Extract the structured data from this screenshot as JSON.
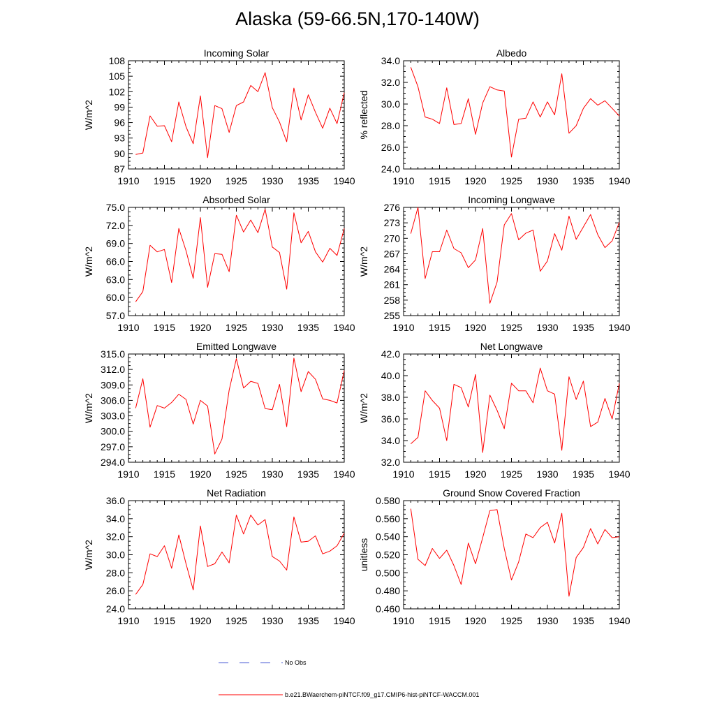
{
  "title": "Alaska (59-66.5N,170-140W)",
  "colors": {
    "model": "#ff0000",
    "obs": "#4a5bd6",
    "axis": "#000000"
  },
  "legend": {
    "obs_label": "No Obs",
    "model_label": "b.e21.BWaerchem-piNTCF.f09_g17.CMIP6-hist-piNTCF-WACCM.001"
  },
  "chart_data": [
    {
      "type": "line",
      "title": "Incoming Solar",
      "ylabel": "W/m^2",
      "xlim": [
        1910,
        1940
      ],
      "ylim": [
        87,
        108
      ],
      "yticks": [
        87,
        90,
        93,
        96,
        99,
        102,
        105,
        108
      ],
      "ytick_labels": [
        "87",
        "90",
        "93",
        "96",
        "99",
        "102",
        "105",
        "108"
      ],
      "xticks": [
        1910,
        1915,
        1920,
        1925,
        1930,
        1935,
        1940
      ],
      "xtick_labels": [
        "1910",
        "1915",
        "1920",
        "1925",
        "1930",
        "1935",
        "1940"
      ],
      "x": [
        1911,
        1912,
        1913,
        1914,
        1915,
        1916,
        1917,
        1918,
        1919,
        1920,
        1921,
        1922,
        1923,
        1924,
        1925,
        1926,
        1927,
        1928,
        1929,
        1930,
        1931,
        1932,
        1933,
        1934,
        1935,
        1936,
        1937,
        1938,
        1939,
        1940
      ],
      "series": [
        {
          "values": [
            89.8,
            90.1,
            97.3,
            95.3,
            95.4,
            92.3,
            100.0,
            95.2,
            91.9,
            101.2,
            89.2,
            99.3,
            98.7,
            94.1,
            99.3,
            100.0,
            103.2,
            102.0,
            105.7,
            98.9,
            96.1,
            92.3,
            102.7,
            96.5,
            101.4,
            98.0,
            94.9,
            98.8,
            95.8,
            101.8
          ]
        }
      ]
    },
    {
      "type": "line",
      "title": "Albedo",
      "ylabel": "% reflected",
      "xlim": [
        1910,
        1940
      ],
      "ylim": [
        24,
        34
      ],
      "yticks": [
        24,
        26,
        28,
        30,
        32,
        34
      ],
      "ytick_labels": [
        "24.0",
        "26.0",
        "28.0",
        "30.0",
        "32.0",
        "34.0"
      ],
      "xticks": [
        1910,
        1915,
        1920,
        1925,
        1930,
        1935,
        1940
      ],
      "xtick_labels": [
        "1910",
        "1915",
        "1920",
        "1925",
        "1930",
        "1935",
        "1940"
      ],
      "x": [
        1911,
        1912,
        1913,
        1914,
        1915,
        1916,
        1917,
        1918,
        1919,
        1920,
        1921,
        1922,
        1923,
        1924,
        1925,
        1926,
        1927,
        1928,
        1929,
        1930,
        1931,
        1932,
        1933,
        1934,
        1935,
        1936,
        1937,
        1938,
        1939,
        1940
      ],
      "series": [
        {
          "values": [
            33.4,
            31.6,
            28.8,
            28.6,
            28.2,
            31.5,
            28.1,
            28.2,
            30.5,
            27.2,
            30.1,
            31.6,
            31.3,
            31.2,
            25.1,
            28.6,
            28.7,
            30.2,
            28.8,
            30.2,
            29.0,
            32.8,
            27.3,
            28.0,
            29.6,
            30.5,
            29.9,
            30.3,
            29.6,
            28.9
          ]
        }
      ]
    },
    {
      "type": "line",
      "title": "Absorbed Solar",
      "ylabel": "W/m^2",
      "xlim": [
        1910,
        1940
      ],
      "ylim": [
        57,
        75
      ],
      "yticks": [
        57,
        60,
        63,
        66,
        69,
        72,
        75
      ],
      "ytick_labels": [
        "57.0",
        "60.0",
        "63.0",
        "66.0",
        "69.0",
        "72.0",
        "75.0"
      ],
      "xticks": [
        1910,
        1915,
        1920,
        1925,
        1930,
        1935,
        1940
      ],
      "xtick_labels": [
        "1910",
        "1915",
        "1920",
        "1925",
        "1930",
        "1935",
        "1940"
      ],
      "x": [
        1911,
        1912,
        1913,
        1914,
        1915,
        1916,
        1917,
        1918,
        1919,
        1920,
        1921,
        1922,
        1923,
        1924,
        1925,
        1926,
        1927,
        1928,
        1929,
        1930,
        1931,
        1932,
        1933,
        1934,
        1935,
        1936,
        1937,
        1938,
        1939,
        1940
      ],
      "series": [
        {
          "values": [
            59.3,
            61.0,
            68.7,
            67.6,
            68.0,
            62.5,
            71.5,
            67.8,
            63.2,
            73.3,
            61.7,
            67.3,
            67.2,
            64.3,
            73.7,
            70.9,
            72.9,
            70.8,
            74.7,
            68.4,
            67.5,
            61.4,
            74.1,
            69.1,
            71.0,
            67.6,
            65.9,
            68.2,
            67.0,
            71.5
          ]
        }
      ]
    },
    {
      "type": "line",
      "title": "Incoming Longwave",
      "ylabel": "W/m^2",
      "xlim": [
        1910,
        1940
      ],
      "ylim": [
        255,
        276
      ],
      "yticks": [
        255,
        258,
        261,
        264,
        267,
        270,
        273,
        276
      ],
      "ytick_labels": [
        "255",
        "258",
        "261",
        "264",
        "267",
        "270",
        "273",
        "276"
      ],
      "xticks": [
        1910,
        1915,
        1920,
        1925,
        1930,
        1935,
        1940
      ],
      "xtick_labels": [
        "1910",
        "1915",
        "1920",
        "1925",
        "1930",
        "1935",
        "1940"
      ],
      "x": [
        1911,
        1912,
        1913,
        1914,
        1915,
        1916,
        1917,
        1918,
        1919,
        1920,
        1921,
        1922,
        1923,
        1924,
        1925,
        1926,
        1927,
        1928,
        1929,
        1930,
        1931,
        1932,
        1933,
        1934,
        1935,
        1936,
        1937,
        1938,
        1939,
        1940
      ],
      "series": [
        {
          "values": [
            270.9,
            276.0,
            262.2,
            267.4,
            267.4,
            271.6,
            268.0,
            267.2,
            264.3,
            265.8,
            271.9,
            257.4,
            261.5,
            272.6,
            274.8,
            269.7,
            271.0,
            271.6,
            263.6,
            265.6,
            270.9,
            267.7,
            274.3,
            269.8,
            272.2,
            274.6,
            270.7,
            268.2,
            269.5,
            273.1
          ]
        }
      ]
    },
    {
      "type": "line",
      "title": "Emitted Longwave",
      "ylabel": "W/m^2",
      "xlim": [
        1910,
        1940
      ],
      "ylim": [
        294,
        315
      ],
      "yticks": [
        294,
        297,
        300,
        303,
        306,
        309,
        312,
        315
      ],
      "ytick_labels": [
        "294.0",
        "297.0",
        "300.0",
        "303.0",
        "306.0",
        "309.0",
        "312.0",
        "315.0"
      ],
      "xticks": [
        1910,
        1915,
        1920,
        1925,
        1930,
        1935,
        1940
      ],
      "xtick_labels": [
        "1910",
        "1915",
        "1920",
        "1925",
        "1930",
        "1935",
        "1940"
      ],
      "x": [
        1911,
        1912,
        1913,
        1914,
        1915,
        1916,
        1917,
        1918,
        1919,
        1920,
        1921,
        1922,
        1923,
        1924,
        1925,
        1926,
        1927,
        1928,
        1929,
        1930,
        1931,
        1932,
        1933,
        1934,
        1935,
        1936,
        1937,
        1938,
        1939,
        1940
      ],
      "series": [
        {
          "values": [
            304.5,
            310.2,
            300.8,
            305.0,
            304.5,
            305.6,
            307.2,
            306.2,
            301.4,
            306.0,
            304.9,
            295.6,
            298.5,
            308.0,
            314.1,
            308.4,
            309.7,
            309.3,
            304.4,
            304.2,
            309.1,
            300.9,
            314.2,
            307.7,
            311.6,
            310.1,
            306.3,
            306.0,
            305.5,
            311.8
          ]
        }
      ]
    },
    {
      "type": "line",
      "title": "Net Longwave",
      "ylabel": "W/m^2",
      "xlim": [
        1910,
        1940
      ],
      "ylim": [
        32,
        42
      ],
      "yticks": [
        32,
        34,
        36,
        38,
        40,
        42
      ],
      "ytick_labels": [
        "32.0",
        "34.0",
        "36.0",
        "38.0",
        "40.0",
        "42.0"
      ],
      "xticks": [
        1910,
        1915,
        1920,
        1925,
        1930,
        1935,
        1940
      ],
      "xtick_labels": [
        "1910",
        "1915",
        "1920",
        "1925",
        "1930",
        "1935",
        "1940"
      ],
      "x": [
        1911,
        1912,
        1913,
        1914,
        1915,
        1916,
        1917,
        1918,
        1919,
        1920,
        1921,
        1922,
        1923,
        1924,
        1925,
        1926,
        1927,
        1928,
        1929,
        1930,
        1931,
        1932,
        1933,
        1934,
        1935,
        1936,
        1937,
        1938,
        1939,
        1940
      ],
      "series": [
        {
          "values": [
            33.7,
            34.3,
            38.6,
            37.7,
            37.0,
            34.0,
            39.2,
            38.9,
            37.1,
            40.1,
            32.9,
            38.2,
            36.8,
            35.1,
            39.3,
            38.6,
            38.6,
            37.5,
            40.7,
            38.6,
            38.3,
            33.1,
            39.9,
            37.8,
            39.5,
            35.3,
            35.7,
            37.9,
            36.0,
            39.3
          ]
        }
      ]
    },
    {
      "type": "line",
      "title": "Net Radiation",
      "ylabel": "W/m^2",
      "xlim": [
        1910,
        1940
      ],
      "ylim": [
        24,
        36
      ],
      "yticks": [
        24,
        26,
        28,
        30,
        32,
        34,
        36
      ],
      "ytick_labels": [
        "24.0",
        "26.0",
        "28.0",
        "30.0",
        "32.0",
        "34.0",
        "36.0"
      ],
      "xticks": [
        1910,
        1915,
        1920,
        1925,
        1930,
        1935,
        1940
      ],
      "xtick_labels": [
        "1910",
        "1915",
        "1920",
        "1925",
        "1930",
        "1935",
        "1940"
      ],
      "x": [
        1911,
        1912,
        1913,
        1914,
        1915,
        1916,
        1917,
        1918,
        1919,
        1920,
        1921,
        1922,
        1923,
        1924,
        1925,
        1926,
        1927,
        1928,
        1929,
        1930,
        1931,
        1932,
        1933,
        1934,
        1935,
        1936,
        1937,
        1938,
        1939,
        1940
      ],
      "series": [
        {
          "values": [
            25.6,
            26.7,
            30.1,
            29.8,
            31.0,
            28.5,
            32.2,
            29.0,
            26.1,
            33.2,
            28.7,
            29.0,
            30.3,
            29.1,
            34.4,
            32.3,
            34.4,
            33.3,
            33.9,
            29.8,
            29.3,
            28.3,
            34.2,
            31.4,
            31.5,
            32.1,
            30.1,
            30.4,
            31.0,
            32.4
          ]
        }
      ]
    },
    {
      "type": "line",
      "title": "Ground Snow Covered Fraction",
      "ylabel": "unitless",
      "xlim": [
        1910,
        1940
      ],
      "ylim": [
        0.46,
        0.58
      ],
      "yticks": [
        0.46,
        0.48,
        0.5,
        0.52,
        0.54,
        0.56,
        0.58
      ],
      "ytick_labels": [
        "0.460",
        "0.480",
        "0.500",
        "0.520",
        "0.540",
        "0.560",
        "0.580"
      ],
      "xticks": [
        1910,
        1915,
        1920,
        1925,
        1930,
        1935,
        1940
      ],
      "xtick_labels": [
        "1910",
        "1915",
        "1920",
        "1925",
        "1930",
        "1935",
        "1940"
      ],
      "x": [
        1911,
        1912,
        1913,
        1914,
        1915,
        1916,
        1917,
        1918,
        1919,
        1920,
        1921,
        1922,
        1923,
        1924,
        1925,
        1926,
        1927,
        1928,
        1929,
        1930,
        1931,
        1932,
        1933,
        1934,
        1935,
        1936,
        1937,
        1938,
        1939,
        1940
      ],
      "series": [
        {
          "values": [
            0.571,
            0.515,
            0.508,
            0.527,
            0.516,
            0.525,
            0.508,
            0.487,
            0.533,
            0.51,
            0.539,
            0.569,
            0.57,
            0.527,
            0.492,
            0.512,
            0.543,
            0.539,
            0.55,
            0.556,
            0.533,
            0.566,
            0.474,
            0.517,
            0.528,
            0.549,
            0.532,
            0.548,
            0.539,
            0.54
          ]
        }
      ]
    }
  ]
}
